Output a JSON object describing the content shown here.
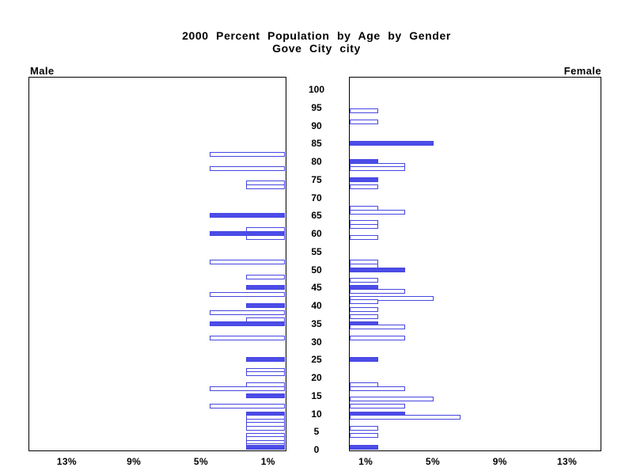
{
  "title": {
    "line1": "2000 Percent Population by Age by Gender",
    "line2": "Gove City city"
  },
  "panel_labels": {
    "left": "Male",
    "right": "Female"
  },
  "chart_data": {
    "type": "bar",
    "subtype": "population-pyramid",
    "title": "2000 Percent Population by Age by Gender",
    "subtitle": "Gove City city",
    "value_unit": "percent",
    "age_axis": {
      "ticks": [
        100,
        95,
        90,
        85,
        80,
        75,
        70,
        65,
        60,
        55,
        50,
        45,
        40,
        35,
        30,
        25,
        20,
        15,
        10,
        5,
        0
      ]
    },
    "pct_axis": {
      "male_tick_labels": [
        "13%",
        "9%",
        "5%",
        "1%"
      ],
      "female_tick_labels": [
        "1%",
        "5%",
        "9%",
        "13%"
      ],
      "tick_values": [
        13,
        9,
        5,
        1
      ],
      "max": 15
    },
    "legend_note": "solid bars occur at ages that are multiples of 5; other ages are outlined",
    "series": [
      {
        "name": "Male",
        "side": "left",
        "bars": [
          {
            "age": 82,
            "value": 4.5,
            "filled": false
          },
          {
            "age": 78,
            "value": 4.5,
            "filled": false
          },
          {
            "age": 74,
            "value": 2.3,
            "filled": false
          },
          {
            "age": 73,
            "value": 2.3,
            "filled": false
          },
          {
            "age": 65,
            "value": 4.5,
            "filled": true
          },
          {
            "age": 61,
            "value": 2.3,
            "filled": false
          },
          {
            "age": 60,
            "value": 4.5,
            "filled": true
          },
          {
            "age": 59,
            "value": 2.3,
            "filled": false
          },
          {
            "age": 52,
            "value": 4.5,
            "filled": false
          },
          {
            "age": 48,
            "value": 2.3,
            "filled": false
          },
          {
            "age": 45,
            "value": 2.3,
            "filled": true
          },
          {
            "age": 43,
            "value": 4.5,
            "filled": false
          },
          {
            "age": 40,
            "value": 2.3,
            "filled": true
          },
          {
            "age": 38,
            "value": 4.5,
            "filled": false
          },
          {
            "age": 36,
            "value": 2.3,
            "filled": false
          },
          {
            "age": 35,
            "value": 4.5,
            "filled": true
          },
          {
            "age": 31,
            "value": 4.5,
            "filled": false
          },
          {
            "age": 25,
            "value": 2.3,
            "filled": true
          },
          {
            "age": 22,
            "value": 2.3,
            "filled": false
          },
          {
            "age": 21,
            "value": 2.3,
            "filled": false
          },
          {
            "age": 18,
            "value": 2.3,
            "filled": false
          },
          {
            "age": 17,
            "value": 4.5,
            "filled": false
          },
          {
            "age": 15,
            "value": 2.3,
            "filled": true
          },
          {
            "age": 12,
            "value": 4.5,
            "filled": false
          },
          {
            "age": 10,
            "value": 2.3,
            "filled": true
          },
          {
            "age": 9,
            "value": 2.3,
            "filled": false
          },
          {
            "age": 8,
            "value": 2.3,
            "filled": false
          },
          {
            "age": 7,
            "value": 2.3,
            "filled": false
          },
          {
            "age": 6,
            "value": 2.3,
            "filled": false
          },
          {
            "age": 4,
            "value": 2.3,
            "filled": false
          },
          {
            "age": 3,
            "value": 2.3,
            "filled": false
          },
          {
            "age": 2,
            "value": 2.3,
            "filled": false
          },
          {
            "age": 1,
            "value": 2.3,
            "filled": false
          },
          {
            "age": 0,
            "value": 2.3,
            "filled": true
          }
        ]
      },
      {
        "name": "Female",
        "side": "right",
        "bars": [
          {
            "age": 94,
            "value": 1.7,
            "filled": false
          },
          {
            "age": 91,
            "value": 1.7,
            "filled": false
          },
          {
            "age": 85,
            "value": 5.0,
            "filled": true
          },
          {
            "age": 80,
            "value": 1.7,
            "filled": true
          },
          {
            "age": 79,
            "value": 3.3,
            "filled": false
          },
          {
            "age": 78,
            "value": 3.3,
            "filled": false
          },
          {
            "age": 75,
            "value": 1.7,
            "filled": true
          },
          {
            "age": 73,
            "value": 1.7,
            "filled": false
          },
          {
            "age": 67,
            "value": 1.7,
            "filled": false
          },
          {
            "age": 66,
            "value": 3.3,
            "filled": false
          },
          {
            "age": 63,
            "value": 1.7,
            "filled": false
          },
          {
            "age": 62,
            "value": 1.7,
            "filled": false
          },
          {
            "age": 59,
            "value": 1.7,
            "filled": false
          },
          {
            "age": 52,
            "value": 1.7,
            "filled": false
          },
          {
            "age": 51,
            "value": 1.7,
            "filled": false
          },
          {
            "age": 50,
            "value": 3.3,
            "filled": true
          },
          {
            "age": 47,
            "value": 1.7,
            "filled": false
          },
          {
            "age": 45,
            "value": 1.7,
            "filled": true
          },
          {
            "age": 44,
            "value": 3.3,
            "filled": false
          },
          {
            "age": 42,
            "value": 5.0,
            "filled": false
          },
          {
            "age": 41,
            "value": 1.7,
            "filled": false
          },
          {
            "age": 39,
            "value": 1.7,
            "filled": false
          },
          {
            "age": 37,
            "value": 1.7,
            "filled": false
          },
          {
            "age": 35,
            "value": 1.7,
            "filled": true
          },
          {
            "age": 34,
            "value": 3.3,
            "filled": false
          },
          {
            "age": 31,
            "value": 3.3,
            "filled": false
          },
          {
            "age": 25,
            "value": 1.7,
            "filled": true
          },
          {
            "age": 18,
            "value": 1.7,
            "filled": false
          },
          {
            "age": 17,
            "value": 3.3,
            "filled": false
          },
          {
            "age": 14,
            "value": 5.0,
            "filled": false
          },
          {
            "age": 12,
            "value": 3.3,
            "filled": false
          },
          {
            "age": 10,
            "value": 3.3,
            "filled": true
          },
          {
            "age": 9,
            "value": 6.6,
            "filled": false
          },
          {
            "age": 6,
            "value": 1.7,
            "filled": false
          },
          {
            "age": 4,
            "value": 1.7,
            "filled": false
          },
          {
            "age": 0,
            "value": 1.7,
            "filled": true
          }
        ]
      }
    ],
    "colors": {
      "bar_outline": "#4646e0",
      "bar_fill": "#4c4ce8",
      "axis": "#000000",
      "background": "#ffffff"
    }
  }
}
